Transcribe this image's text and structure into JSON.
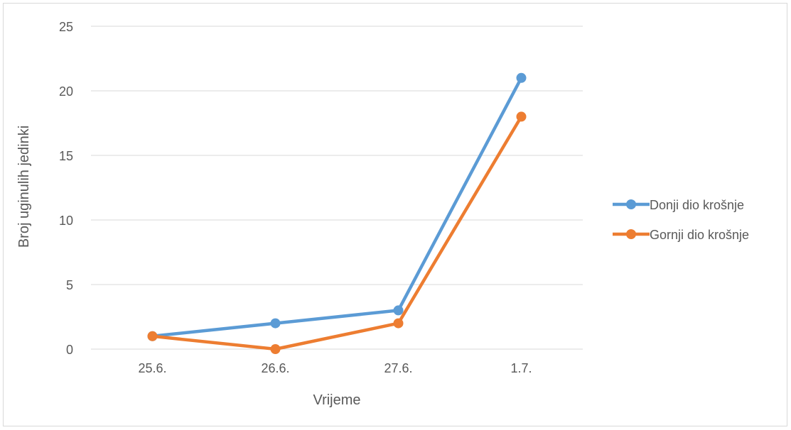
{
  "chart_data": {
    "type": "line",
    "title": "",
    "xlabel": "Vrijeme",
    "ylabel": "Broj uginulih jedinki",
    "categories": [
      "25.6.",
      "26.6.",
      "27.6.",
      "1.7."
    ],
    "ylim": [
      0,
      25
    ],
    "yticks": [
      0,
      5,
      10,
      15,
      20,
      25
    ],
    "grid": true,
    "legend_position": "right",
    "series": [
      {
        "name": "Donji dio krošnje",
        "color": "#5b9bd5",
        "values": [
          1,
          2,
          3,
          21
        ]
      },
      {
        "name": "Gornji dio krošnje",
        "color": "#ed7d31",
        "values": [
          1,
          0,
          2,
          18
        ]
      }
    ]
  }
}
